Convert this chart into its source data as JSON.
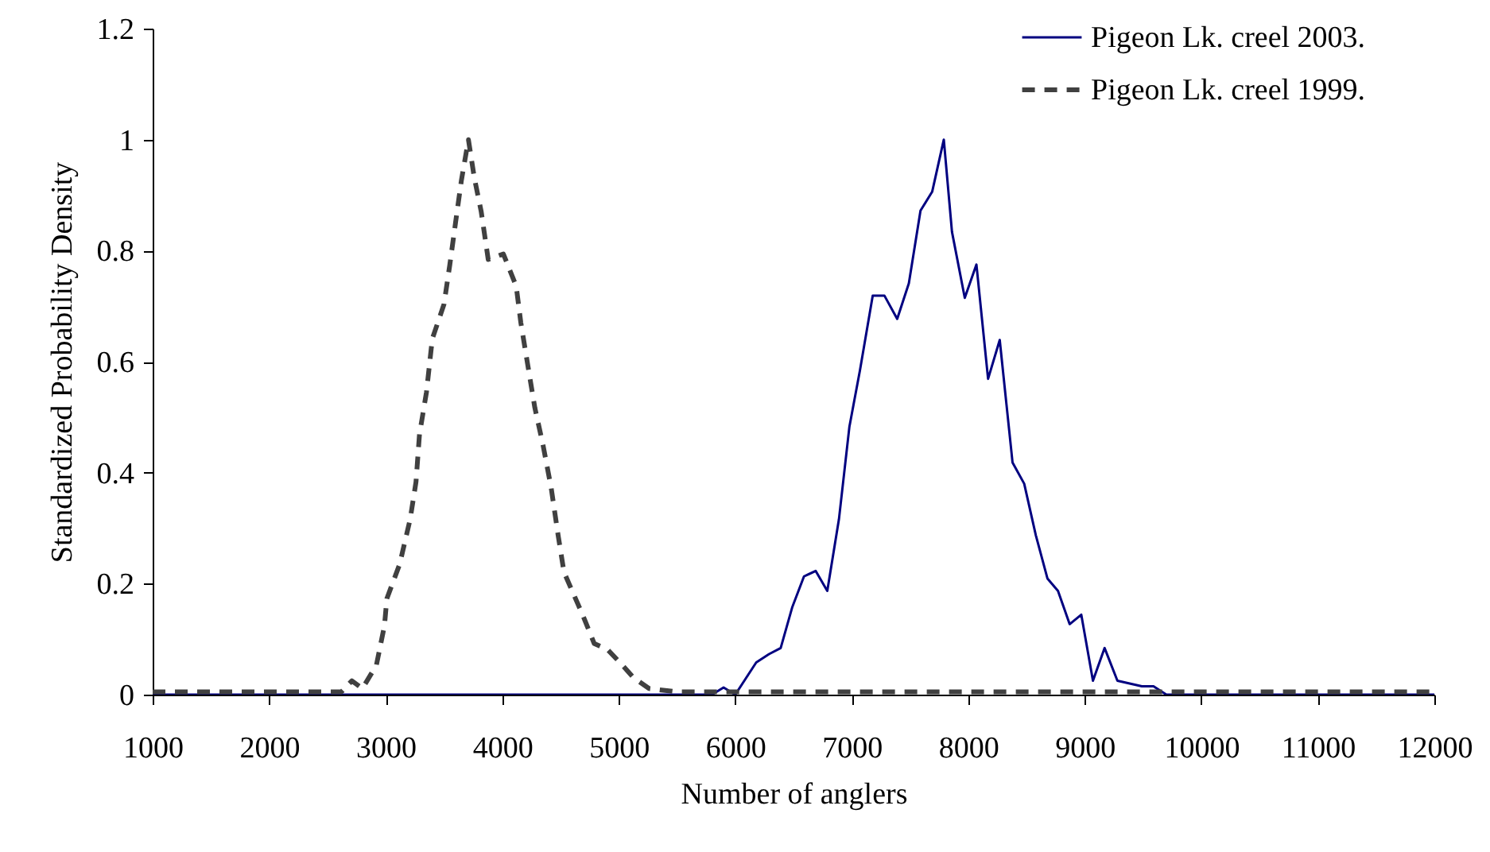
{
  "chart_data": {
    "type": "line",
    "xlabel": "Number of anglers",
    "ylabel": "Standardized Probability Density",
    "xlim": [
      1000,
      12000
    ],
    "xticks": [
      1000,
      2000,
      3000,
      4000,
      5000,
      6000,
      7000,
      8000,
      9000,
      10000,
      11000,
      12000
    ],
    "ylim": [
      0,
      1.2
    ],
    "yticks": [
      0,
      0.2,
      0.4,
      0.6,
      0.8,
      1,
      1.2
    ],
    "grid": false,
    "legend": "top right",
    "series": [
      {
        "name": "Pigeon Lk. creel 2003.",
        "color": "#000080",
        "line_style": "solid",
        "x": [
          1000,
          5800,
          5900,
          6000,
          6180,
          6290,
          6390,
          6490,
          6590,
          6690,
          6790,
          6890,
          6980,
          7070,
          7180,
          7280,
          7390,
          7490,
          7590,
          7690,
          7790,
          7860,
          7970,
          8070,
          8170,
          8270,
          8380,
          8480,
          8580,
          8680,
          8770,
          8870,
          8970,
          9070,
          9170,
          9280,
          9490,
          9590,
          9700,
          12000
        ],
        "values": [
          0,
          0,
          0.013,
          0,
          0.058,
          0.073,
          0.084,
          0.158,
          0.213,
          0.223,
          0.187,
          0.316,
          0.483,
          0.584,
          0.719,
          0.719,
          0.677,
          0.741,
          0.872,
          0.906,
          1,
          0.834,
          0.715,
          0.775,
          0.569,
          0.639,
          0.418,
          0.38,
          0.287,
          0.209,
          0.187,
          0.127,
          0.144,
          0.025,
          0.084,
          0.025,
          0.015,
          0.015,
          0,
          0
        ]
      },
      {
        "name": "Pigeon Lk. creel 1999.",
        "color": "#404040",
        "line_style": "dashed",
        "x": [
          1000,
          2620,
          2710,
          2800,
          2920,
          2990,
          3010,
          3120,
          3210,
          3260,
          3290,
          3350,
          3400,
          3500,
          3550,
          3600,
          3650,
          3710,
          3760,
          3820,
          3880,
          4010,
          4120,
          4160,
          4220,
          4280,
          4350,
          4420,
          4480,
          4530,
          4600,
          4690,
          4790,
          4900,
          5010,
          5130,
          5260,
          5500,
          12000
        ],
        "values": [
          0.005,
          0.005,
          0.025,
          0.011,
          0.053,
          0.125,
          0.173,
          0.235,
          0.316,
          0.383,
          0.469,
          0.545,
          0.641,
          0.703,
          0.774,
          0.851,
          0.927,
          1,
          0.932,
          0.87,
          0.784,
          0.794,
          0.736,
          0.67,
          0.593,
          0.517,
          0.45,
          0.373,
          0.287,
          0.221,
          0.187,
          0.144,
          0.092,
          0.082,
          0.058,
          0.03,
          0.011,
          0.005,
          0.005
        ]
      }
    ]
  }
}
